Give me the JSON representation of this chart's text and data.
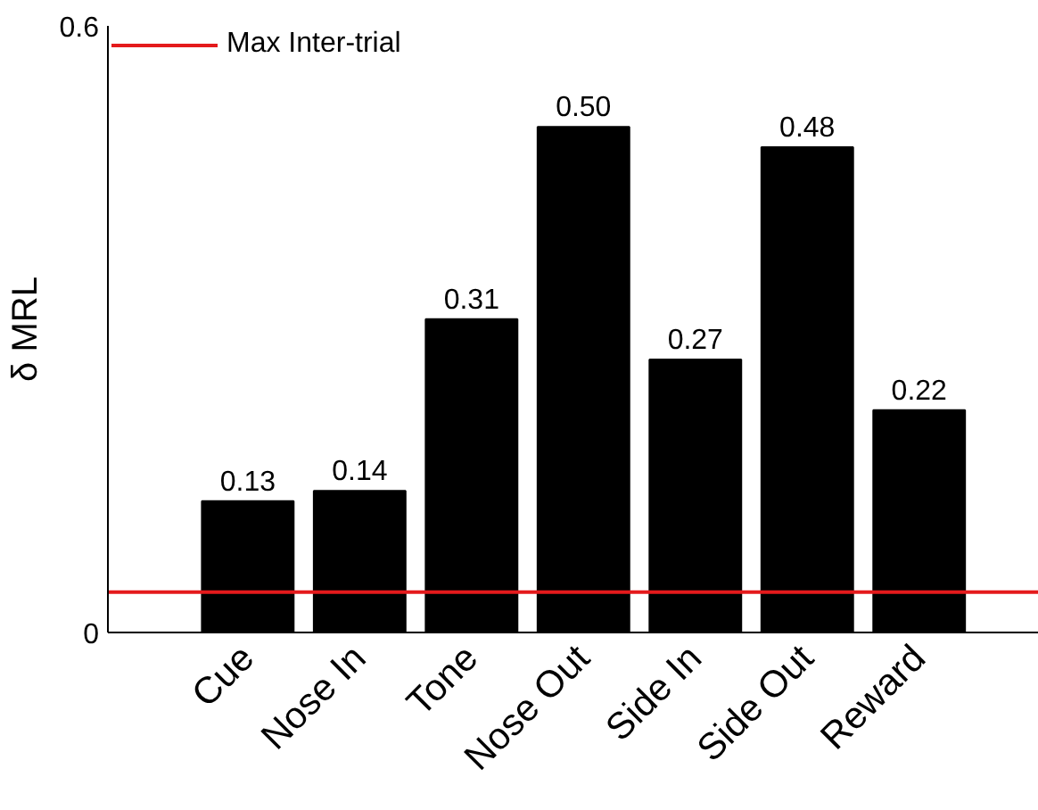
{
  "chart_data": {
    "type": "bar",
    "ylabel": "δ MRL",
    "categories": [
      "Cue",
      "Nose In",
      "Tone",
      "Nose Out",
      "Side In",
      "Side Out",
      "Reward"
    ],
    "values": [
      0.13,
      0.14,
      0.31,
      0.5,
      0.27,
      0.48,
      0.22
    ],
    "color": "#000000",
    "value_labels": [
      "0.13",
      "0.14",
      "0.31",
      "0.50",
      "0.27",
      "0.48",
      "0.22"
    ],
    "ylim": [
      0,
      0.6
    ],
    "yticks": [
      0,
      0.6
    ],
    "grid": false,
    "legend": "top left",
    "ref_lines": [
      {
        "axis": "y",
        "value": 0.04,
        "label": "Max Inter-trial",
        "color": "#e41a1c"
      }
    ]
  }
}
